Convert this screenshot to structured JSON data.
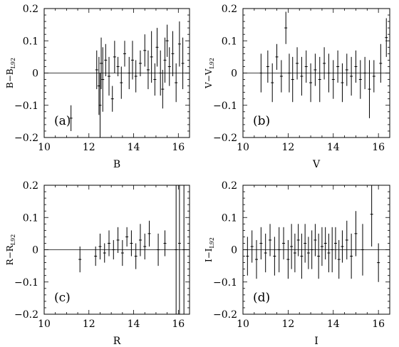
{
  "chart_data": [
    {
      "type": "scatter",
      "panel_label": "(a)",
      "xlabel": "B",
      "ylabel": "B−B",
      "ylabel_sub": "L92",
      "xlim": [
        10,
        16.5
      ],
      "ylim": [
        -0.2,
        0.2
      ],
      "xticks": [
        10,
        12,
        14,
        16
      ],
      "yticks": [
        -0.2,
        -0.1,
        0,
        0.1,
        0.2
      ],
      "xtick_labels": [
        "10",
        "12",
        "14",
        "16"
      ],
      "ytick_labels": [
        "−0.2",
        "−0.1",
        "0",
        "0.1",
        "0.2"
      ],
      "reference_line": 0,
      "grid": false,
      "points": [
        {
          "x": 11.2,
          "y": -0.14,
          "err": 0.04
        },
        {
          "x": 12.35,
          "y": 0.01,
          "err": 0.06
        },
        {
          "x": 12.45,
          "y": -0.04,
          "err": 0.09
        },
        {
          "x": 12.5,
          "y": -0.1,
          "err": 0.1
        },
        {
          "x": 12.55,
          "y": 0.03,
          "err": 0.08
        },
        {
          "x": 12.62,
          "y": -0.02,
          "err": 0.1
        },
        {
          "x": 12.75,
          "y": 0.04,
          "err": 0.05
        },
        {
          "x": 12.9,
          "y": -0.01,
          "err": 0.06
        },
        {
          "x": 13.05,
          "y": -0.08,
          "err": 0.04
        },
        {
          "x": 13.15,
          "y": 0.05,
          "err": 0.05
        },
        {
          "x": 13.3,
          "y": 0.02,
          "err": 0.03
        },
        {
          "x": 13.45,
          "y": -0.03,
          "err": 0.05
        },
        {
          "x": 13.6,
          "y": 0.06,
          "err": 0.04
        },
        {
          "x": 13.8,
          "y": 0.0,
          "err": 0.05
        },
        {
          "x": 13.95,
          "y": 0.04,
          "err": 0.06
        },
        {
          "x": 14.1,
          "y": -0.01,
          "err": 0.05
        },
        {
          "x": 14.3,
          "y": 0.03,
          "err": 0.04
        },
        {
          "x": 14.5,
          "y": 0.07,
          "err": 0.05
        },
        {
          "x": 14.65,
          "y": 0.01,
          "err": 0.06
        },
        {
          "x": 14.8,
          "y": 0.05,
          "err": 0.08
        },
        {
          "x": 14.95,
          "y": -0.02,
          "err": 0.05
        },
        {
          "x": 15.05,
          "y": 0.08,
          "err": 0.06
        },
        {
          "x": 15.2,
          "y": 0.0,
          "err": 0.07
        },
        {
          "x": 15.3,
          "y": -0.05,
          "err": 0.06
        },
        {
          "x": 15.4,
          "y": 0.04,
          "err": 0.07
        },
        {
          "x": 15.5,
          "y": 0.1,
          "err": 0.05
        },
        {
          "x": 15.6,
          "y": 0.02,
          "err": 0.06
        },
        {
          "x": 15.75,
          "y": 0.06,
          "err": 0.07
        },
        {
          "x": 15.9,
          "y": -0.03,
          "err": 0.06
        },
        {
          "x": 16.05,
          "y": 0.09,
          "err": 0.07
        },
        {
          "x": 16.2,
          "y": 0.03,
          "err": 0.08
        }
      ]
    },
    {
      "type": "scatter",
      "panel_label": "(b)",
      "xlabel": "V",
      "ylabel": "V−V",
      "ylabel_sub": "L92",
      "xlim": [
        10,
        16.5
      ],
      "ylim": [
        -0.2,
        0.2
      ],
      "xticks": [
        10,
        12,
        14,
        16
      ],
      "yticks": [
        -0.2,
        -0.1,
        0,
        0.1,
        0.2
      ],
      "xtick_labels": [
        "10",
        "12",
        "14",
        "16"
      ],
      "ytick_labels": [
        "−0.2",
        "−0.1",
        "0",
        "0.1",
        "0.2"
      ],
      "reference_line": 0,
      "grid": false,
      "points": [
        {
          "x": 10.8,
          "y": 0.0,
          "err": 0.06
        },
        {
          "x": 11.1,
          "y": 0.02,
          "err": 0.05
        },
        {
          "x": 11.3,
          "y": -0.03,
          "err": 0.06
        },
        {
          "x": 11.5,
          "y": 0.05,
          "err": 0.04
        },
        {
          "x": 11.7,
          "y": -0.01,
          "err": 0.05
        },
        {
          "x": 11.9,
          "y": 0.14,
          "err": 0.05
        },
        {
          "x": 12.05,
          "y": 0.0,
          "err": 0.06
        },
        {
          "x": 12.2,
          "y": -0.02,
          "err": 0.07
        },
        {
          "x": 12.4,
          "y": 0.03,
          "err": 0.05
        },
        {
          "x": 12.6,
          "y": -0.01,
          "err": 0.06
        },
        {
          "x": 12.8,
          "y": 0.02,
          "err": 0.05
        },
        {
          "x": 13.0,
          "y": -0.03,
          "err": 0.06
        },
        {
          "x": 13.2,
          "y": 0.01,
          "err": 0.05
        },
        {
          "x": 13.4,
          "y": -0.02,
          "err": 0.07
        },
        {
          "x": 13.6,
          "y": 0.03,
          "err": 0.05
        },
        {
          "x": 13.8,
          "y": 0.0,
          "err": 0.06
        },
        {
          "x": 14.0,
          "y": -0.02,
          "err": 0.06
        },
        {
          "x": 14.2,
          "y": 0.02,
          "err": 0.05
        },
        {
          "x": 14.4,
          "y": -0.03,
          "err": 0.06
        },
        {
          "x": 14.6,
          "y": 0.01,
          "err": 0.05
        },
        {
          "x": 14.8,
          "y": -0.01,
          "err": 0.06
        },
        {
          "x": 15.0,
          "y": 0.02,
          "err": 0.05
        },
        {
          "x": 15.2,
          "y": -0.02,
          "err": 0.06
        },
        {
          "x": 15.4,
          "y": 0.0,
          "err": 0.05
        },
        {
          "x": 15.6,
          "y": -0.05,
          "err": 0.09
        },
        {
          "x": 15.8,
          "y": -0.01,
          "err": 0.05
        },
        {
          "x": 16.1,
          "y": 0.03,
          "err": 0.06
        },
        {
          "x": 16.35,
          "y": 0.11,
          "err": 0.06
        }
      ]
    },
    {
      "type": "scatter",
      "panel_label": "(c)",
      "xlabel": "R",
      "ylabel": "R−R",
      "ylabel_sub": "L92",
      "xlim": [
        10,
        16.5
      ],
      "ylim": [
        -0.2,
        0.2
      ],
      "xticks": [
        10,
        12,
        14,
        16
      ],
      "yticks": [
        -0.2,
        -0.1,
        0,
        0.1,
        0.2
      ],
      "xtick_labels": [
        "10",
        "12",
        "14",
        "16"
      ],
      "ytick_labels": [
        "−0.2",
        "−0.1",
        "0",
        "0.1",
        "0.2"
      ],
      "reference_line": 0,
      "grid": false,
      "points": [
        {
          "x": 11.6,
          "y": -0.03,
          "err": 0.04
        },
        {
          "x": 12.3,
          "y": -0.02,
          "err": 0.03
        },
        {
          "x": 12.5,
          "y": 0.01,
          "err": 0.04
        },
        {
          "x": 12.7,
          "y": -0.01,
          "err": 0.03
        },
        {
          "x": 12.9,
          "y": 0.02,
          "err": 0.04
        },
        {
          "x": 13.1,
          "y": 0.0,
          "err": 0.03
        },
        {
          "x": 13.3,
          "y": 0.03,
          "err": 0.04
        },
        {
          "x": 13.5,
          "y": -0.01,
          "err": 0.04
        },
        {
          "x": 13.7,
          "y": 0.04,
          "err": 0.03
        },
        {
          "x": 13.9,
          "y": 0.02,
          "err": 0.04
        },
        {
          "x": 14.1,
          "y": -0.02,
          "err": 0.04
        },
        {
          "x": 14.3,
          "y": 0.03,
          "err": 0.05
        },
        {
          "x": 14.5,
          "y": 0.01,
          "err": 0.04
        },
        {
          "x": 14.7,
          "y": 0.05,
          "err": 0.04
        },
        {
          "x": 15.1,
          "y": 0.0,
          "err": 0.05
        },
        {
          "x": 15.4,
          "y": 0.02,
          "err": 0.04
        },
        {
          "x": 15.9,
          "y": 0.0,
          "err": 0.3
        },
        {
          "x": 16.05,
          "y": 0.02,
          "err": 0.25
        },
        {
          "x": 16.25,
          "y": 0.0,
          "err": 0.3
        }
      ]
    },
    {
      "type": "scatter",
      "panel_label": "(d)",
      "xlabel": "I",
      "ylabel": "I−I",
      "ylabel_sub": "L92",
      "xlim": [
        10,
        16.5
      ],
      "ylim": [
        -0.2,
        0.2
      ],
      "xticks": [
        10,
        12,
        14,
        16
      ],
      "yticks": [
        -0.2,
        -0.1,
        0,
        0.1,
        0.2
      ],
      "xtick_labels": [
        "10",
        "12",
        "14",
        "16"
      ],
      "ytick_labels": [
        "−0.2",
        "−0.1",
        "0",
        "0.1",
        "0.2"
      ],
      "reference_line": 0,
      "grid": false,
      "points": [
        {
          "x": 10.2,
          "y": -0.02,
          "err": 0.06
        },
        {
          "x": 10.4,
          "y": 0.01,
          "err": 0.05
        },
        {
          "x": 10.6,
          "y": -0.03,
          "err": 0.06
        },
        {
          "x": 10.8,
          "y": 0.02,
          "err": 0.05
        },
        {
          "x": 11.0,
          "y": -0.01,
          "err": 0.06
        },
        {
          "x": 11.2,
          "y": 0.03,
          "err": 0.05
        },
        {
          "x": 11.4,
          "y": -0.02,
          "err": 0.06
        },
        {
          "x": 11.6,
          "y": 0.0,
          "err": 0.07
        },
        {
          "x": 11.8,
          "y": 0.02,
          "err": 0.05
        },
        {
          "x": 12.0,
          "y": -0.03,
          "err": 0.06
        },
        {
          "x": 12.15,
          "y": 0.01,
          "err": 0.07
        },
        {
          "x": 12.3,
          "y": -0.01,
          "err": 0.06
        },
        {
          "x": 12.45,
          "y": 0.03,
          "err": 0.05
        },
        {
          "x": 12.6,
          "y": -0.02,
          "err": 0.07
        },
        {
          "x": 12.75,
          "y": 0.02,
          "err": 0.06
        },
        {
          "x": 12.9,
          "y": -0.01,
          "err": 0.05
        },
        {
          "x": 13.05,
          "y": 0.0,
          "err": 0.06
        },
        {
          "x": 13.2,
          "y": 0.03,
          "err": 0.05
        },
        {
          "x": 13.35,
          "y": -0.02,
          "err": 0.07
        },
        {
          "x": 13.5,
          "y": 0.01,
          "err": 0.06
        },
        {
          "x": 13.65,
          "y": 0.02,
          "err": 0.05
        },
        {
          "x": 13.8,
          "y": -0.01,
          "err": 0.06
        },
        {
          "x": 13.95,
          "y": 0.0,
          "err": 0.07
        },
        {
          "x": 14.1,
          "y": 0.02,
          "err": 0.05
        },
        {
          "x": 14.25,
          "y": -0.03,
          "err": 0.06
        },
        {
          "x": 14.4,
          "y": 0.01,
          "err": 0.05
        },
        {
          "x": 14.6,
          "y": 0.03,
          "err": 0.06
        },
        {
          "x": 14.8,
          "y": -0.02,
          "err": 0.07
        },
        {
          "x": 15.0,
          "y": 0.05,
          "err": 0.07
        },
        {
          "x": 15.3,
          "y": 0.0,
          "err": 0.08
        },
        {
          "x": 15.7,
          "y": 0.11,
          "err": 0.1
        },
        {
          "x": 16.0,
          "y": -0.04,
          "err": 0.06
        }
      ]
    }
  ]
}
